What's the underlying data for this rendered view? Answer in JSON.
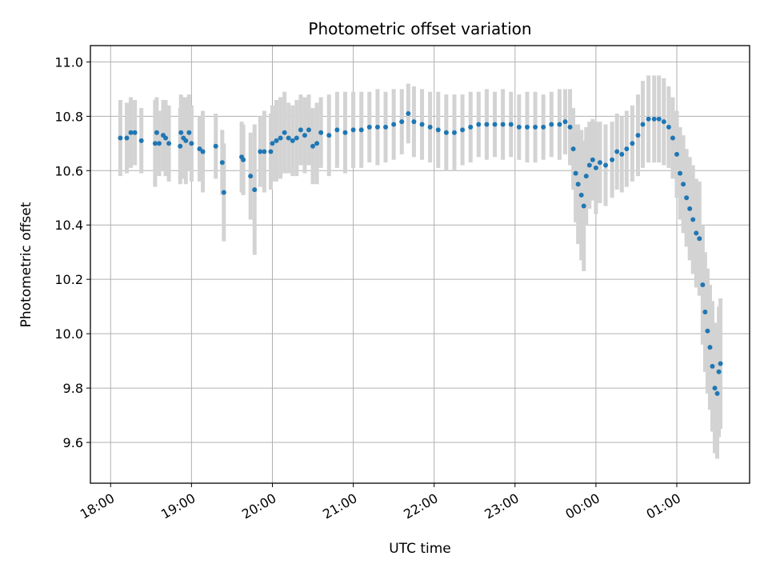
{
  "chart_data": {
    "type": "scatter",
    "title": "Photometric offset variation",
    "xlabel": "UTC time",
    "ylabel": "Photometric offset",
    "x_tick_labels": [
      "18:00",
      "19:00",
      "20:00",
      "21:00",
      "22:00",
      "23:00",
      "00:00",
      "01:00"
    ],
    "y_tick_labels": [
      "9.6",
      "9.8",
      "10.0",
      "10.2",
      "10.4",
      "10.6",
      "10.8",
      "11.0"
    ],
    "xlim": [
      -0.25,
      7.9
    ],
    "ylim": [
      9.45,
      11.06
    ],
    "grid": true,
    "colors": {
      "points": "#1f77b4",
      "errorbars": "#d3d3d3",
      "grid": "#b0b0b0"
    },
    "x_unit": "hours since 18:00 UTC",
    "series": [
      {
        "points": [
          [
            0.12,
            10.72,
            0.14
          ],
          [
            0.2,
            10.72,
            0.13
          ],
          [
            0.25,
            10.74,
            0.13
          ],
          [
            0.3,
            10.74,
            0.12
          ],
          [
            0.38,
            10.71,
            0.12
          ],
          [
            0.55,
            10.7,
            0.16
          ],
          [
            0.57,
            10.74,
            0.13
          ],
          [
            0.6,
            10.7,
            0.12
          ],
          [
            0.65,
            10.73,
            0.13
          ],
          [
            0.68,
            10.72,
            0.14
          ],
          [
            0.72,
            10.7,
            0.14
          ],
          [
            0.86,
            10.69,
            0.14
          ],
          [
            0.87,
            10.74,
            0.14
          ],
          [
            0.9,
            10.72,
            0.15
          ],
          [
            0.93,
            10.71,
            0.16
          ],
          [
            0.97,
            10.74,
            0.14
          ],
          [
            1.0,
            10.7,
            0.14
          ],
          [
            1.1,
            10.68,
            0.12
          ],
          [
            1.14,
            10.67,
            0.15
          ],
          [
            1.3,
            10.69,
            0.12
          ],
          [
            1.38,
            10.63,
            0.12
          ],
          [
            1.4,
            10.52,
            0.18
          ],
          [
            1.62,
            10.65,
            0.13
          ],
          [
            1.64,
            10.64,
            0.13
          ],
          [
            1.73,
            10.58,
            0.16
          ],
          [
            1.78,
            10.53,
            0.24
          ],
          [
            1.85,
            10.67,
            0.13
          ],
          [
            1.9,
            10.67,
            0.15
          ],
          [
            1.98,
            10.67,
            0.14
          ],
          [
            2.0,
            10.7,
            0.14
          ],
          [
            2.05,
            10.71,
            0.15
          ],
          [
            2.1,
            10.72,
            0.15
          ],
          [
            2.15,
            10.74,
            0.15
          ],
          [
            2.2,
            10.72,
            0.13
          ],
          [
            2.25,
            10.71,
            0.13
          ],
          [
            2.3,
            10.72,
            0.14
          ],
          [
            2.35,
            10.75,
            0.13
          ],
          [
            2.4,
            10.73,
            0.14
          ],
          [
            2.45,
            10.75,
            0.13
          ],
          [
            2.5,
            10.69,
            0.14
          ],
          [
            2.55,
            10.7,
            0.15
          ],
          [
            2.6,
            10.74,
            0.13
          ],
          [
            2.7,
            10.73,
            0.15
          ],
          [
            2.8,
            10.75,
            0.14
          ],
          [
            2.9,
            10.74,
            0.15
          ],
          [
            3.0,
            10.75,
            0.14
          ],
          [
            3.1,
            10.75,
            0.14
          ],
          [
            3.2,
            10.76,
            0.13
          ],
          [
            3.3,
            10.76,
            0.14
          ],
          [
            3.4,
            10.76,
            0.13
          ],
          [
            3.5,
            10.77,
            0.13
          ],
          [
            3.6,
            10.78,
            0.12
          ],
          [
            3.68,
            10.81,
            0.11
          ],
          [
            3.75,
            10.78,
            0.13
          ],
          [
            3.85,
            10.77,
            0.13
          ],
          [
            3.95,
            10.76,
            0.13
          ],
          [
            4.05,
            10.75,
            0.14
          ],
          [
            4.15,
            10.74,
            0.14
          ],
          [
            4.25,
            10.74,
            0.14
          ],
          [
            4.35,
            10.75,
            0.13
          ],
          [
            4.45,
            10.76,
            0.13
          ],
          [
            4.55,
            10.77,
            0.12
          ],
          [
            4.65,
            10.77,
            0.13
          ],
          [
            4.75,
            10.77,
            0.12
          ],
          [
            4.85,
            10.77,
            0.13
          ],
          [
            4.95,
            10.77,
            0.12
          ],
          [
            5.05,
            10.76,
            0.12
          ],
          [
            5.15,
            10.76,
            0.13
          ],
          [
            5.25,
            10.76,
            0.13
          ],
          [
            5.35,
            10.76,
            0.12
          ],
          [
            5.45,
            10.77,
            0.12
          ],
          [
            5.55,
            10.77,
            0.13
          ],
          [
            5.62,
            10.78,
            0.12
          ],
          [
            5.68,
            10.76,
            0.14
          ],
          [
            5.72,
            10.68,
            0.15
          ],
          [
            5.75,
            10.59,
            0.18
          ],
          [
            5.78,
            10.55,
            0.22
          ],
          [
            5.82,
            10.51,
            0.24
          ],
          [
            5.85,
            10.47,
            0.24
          ],
          [
            5.88,
            10.58,
            0.18
          ],
          [
            5.92,
            10.62,
            0.16
          ],
          [
            5.96,
            10.64,
            0.15
          ],
          [
            6.0,
            10.61,
            0.17
          ],
          [
            6.05,
            10.63,
            0.15
          ],
          [
            6.12,
            10.62,
            0.15
          ],
          [
            6.2,
            10.64,
            0.14
          ],
          [
            6.26,
            10.67,
            0.14
          ],
          [
            6.32,
            10.66,
            0.14
          ],
          [
            6.38,
            10.68,
            0.14
          ],
          [
            6.45,
            10.7,
            0.14
          ],
          [
            6.52,
            10.73,
            0.15
          ],
          [
            6.58,
            10.77,
            0.16
          ],
          [
            6.65,
            10.79,
            0.16
          ],
          [
            6.72,
            10.79,
            0.16
          ],
          [
            6.78,
            10.79,
            0.16
          ],
          [
            6.84,
            10.78,
            0.16
          ],
          [
            6.9,
            10.76,
            0.15
          ],
          [
            6.95,
            10.72,
            0.15
          ],
          [
            7.0,
            10.66,
            0.16
          ],
          [
            7.04,
            10.59,
            0.17
          ],
          [
            7.08,
            10.55,
            0.18
          ],
          [
            7.12,
            10.5,
            0.18
          ],
          [
            7.16,
            10.46,
            0.19
          ],
          [
            7.2,
            10.42,
            0.2
          ],
          [
            7.24,
            10.37,
            0.2
          ],
          [
            7.28,
            10.35,
            0.21
          ],
          [
            7.32,
            10.18,
            0.22
          ],
          [
            7.35,
            10.08,
            0.22
          ],
          [
            7.38,
            10.01,
            0.23
          ],
          [
            7.41,
            9.95,
            0.23
          ],
          [
            7.44,
            9.88,
            0.24
          ],
          [
            7.47,
            9.8,
            0.24
          ],
          [
            7.5,
            9.78,
            0.24
          ],
          [
            7.52,
            9.86,
            0.24
          ],
          [
            7.54,
            9.89,
            0.24
          ]
        ]
      }
    ]
  }
}
